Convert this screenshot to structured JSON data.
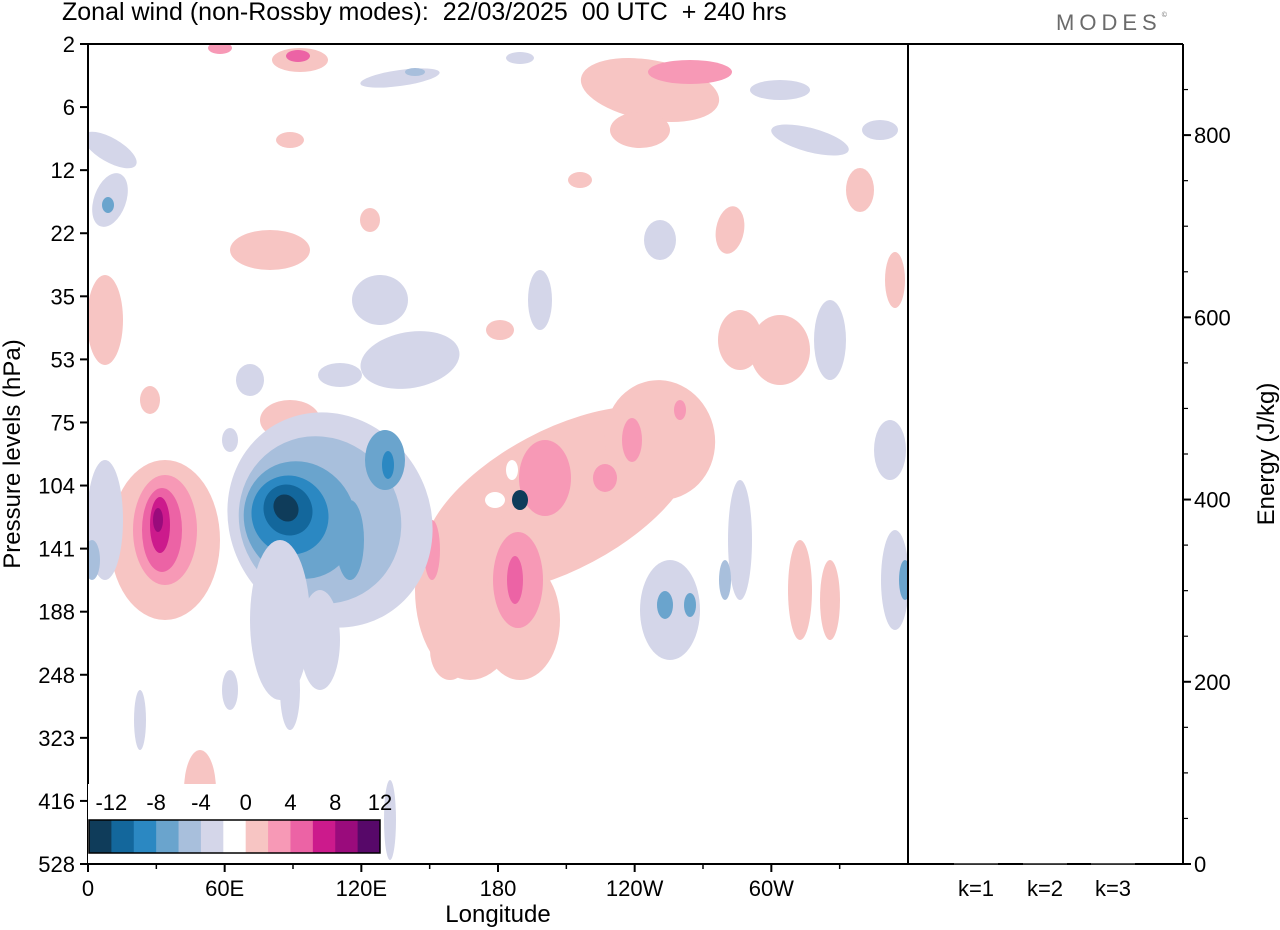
{
  "header": {
    "title": "Zonal wind (non-Rossby modes):  22/03/2025  00 UTC  + 240 hrs",
    "brand": "MODES",
    "brand_mark": "©"
  },
  "chart_data": [
    {
      "type": "heatmap",
      "title": "Zonal wind (non-Rossby modes):  22/03/2025  00 UTC  + 240 hrs",
      "xlabel": "Longitude",
      "ylabel": "Pressure levels (hPa)",
      "x_ticks": [
        "0",
        "60E",
        "120E",
        "180",
        "120W",
        "60W"
      ],
      "x_tick_values": [
        0,
        60,
        120,
        180,
        240,
        300
      ],
      "xlim": [
        0,
        360
      ],
      "y_ticks": [
        "2",
        "6",
        "12",
        "22",
        "35",
        "53",
        "75",
        "104",
        "141",
        "188",
        "248",
        "323",
        "416",
        "528"
      ],
      "y_axis_inverted": true,
      "colorbar": {
        "labels": [
          "-12",
          "-8",
          "-4",
          "0",
          "4",
          "8",
          "12"
        ],
        "levels": [
          -14,
          -12,
          -10,
          -8,
          -6,
          -4,
          -2,
          2,
          4,
          6,
          8,
          10,
          12,
          14
        ],
        "colors": [
          "#0f3c5a",
          "#13679c",
          "#2b88c2",
          "#6aa4cd",
          "#a8bfdc",
          "#d4d6e9",
          "#ffffff",
          "#f7c5c3",
          "#f799b6",
          "#ec63a5",
          "#cc1a8c",
          "#9a0b7c",
          "#570869"
        ]
      },
      "features": [
        {
          "lon": 82,
          "level": 128,
          "sign": "negative",
          "peak": -13
        },
        {
          "lon": 35,
          "level": 135,
          "sign": "positive",
          "peak": 12
        },
        {
          "lon": 186,
          "level": 155,
          "sign": "positive",
          "peak": 8
        },
        {
          "lon": 195,
          "level": 100,
          "sign": "positive",
          "peak": 6
        },
        {
          "lon": 240,
          "level": 6,
          "sign": "positive",
          "peak": 6
        }
      ]
    },
    {
      "type": "bar",
      "ylabel": "Energy (J/kg)",
      "categories": [
        "k=1",
        "k=2",
        "k=3"
      ],
      "values": [
        1,
        1,
        1
      ],
      "ylim": [
        0,
        900
      ],
      "y_ticks": [
        "0",
        "200",
        "400",
        "600",
        "800"
      ],
      "y_tick_values": [
        0,
        200,
        400,
        600,
        800
      ]
    }
  ]
}
